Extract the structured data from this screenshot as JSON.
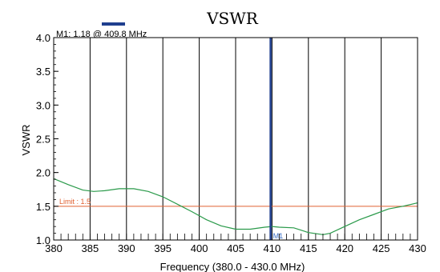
{
  "chart_data": {
    "type": "line",
    "title": "VSWR",
    "xlabel": "Frequency (380.0 - 430.0 MHz)",
    "ylabel": "VSWR",
    "xlim": [
      380,
      430
    ],
    "ylim": [
      1.0,
      4.0
    ],
    "x_ticks": [
      "380",
      "385",
      "390",
      "395",
      "400",
      "405",
      "410",
      "415",
      "420",
      "425",
      "430"
    ],
    "y_ticks": [
      "1.0",
      "1.5",
      "2.0",
      "2.5",
      "3.0",
      "3.5",
      "4.0"
    ],
    "grid": "vertical",
    "legend": "none",
    "series": [
      {
        "color": "#2a9a4a",
        "x": [
          380,
          382,
          384,
          385.5,
          387,
          389,
          391,
          393,
          395,
          397,
          399,
          401,
          403,
          405,
          407,
          409,
          410,
          411,
          413,
          415,
          417,
          418,
          420,
          422,
          424,
          426,
          428,
          430
        ],
        "y": [
          1.91,
          1.82,
          1.74,
          1.72,
          1.73,
          1.76,
          1.76,
          1.72,
          1.64,
          1.53,
          1.42,
          1.3,
          1.21,
          1.16,
          1.16,
          1.19,
          1.2,
          1.19,
          1.18,
          1.11,
          1.08,
          1.1,
          1.2,
          1.3,
          1.38,
          1.46,
          1.5,
          1.55
        ]
      }
    ],
    "limit": {
      "label": "Limit : 1.5",
      "value": 1.5,
      "color": "#e06030"
    },
    "marker": {
      "readout": "M1: 1.18  @ 409.8 MHz",
      "label": "M1",
      "x": 409.8,
      "y": 1.18,
      "color": "#1f3f8f"
    }
  }
}
